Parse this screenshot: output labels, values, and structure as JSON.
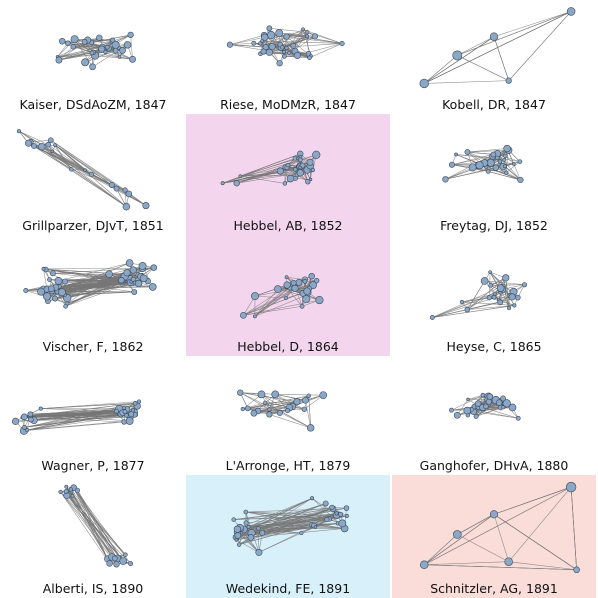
{
  "colors": {
    "node_fill": "#8aa7c7",
    "node_stroke": "#3c4a5a",
    "edge": "#777777",
    "highlight_pink": "#f3d6ee",
    "highlight_blue": "#d8f0fa",
    "highlight_red": "#fadcd8"
  },
  "panels": [
    {
      "label": "Kaiser, DSdAoZM, 1847",
      "highlight": "none",
      "shape": "wide",
      "nodes": 30,
      "seed": 11
    },
    {
      "label": "Riese, MoDMzR, 1847",
      "highlight": "none",
      "shape": "wide",
      "nodes": 34,
      "seed": 12
    },
    {
      "label": "Kobell, DR, 1847",
      "highlight": "none",
      "shape": "sparse",
      "nodes": 5,
      "seed": 13
    },
    {
      "label": "Grillparzer, DJvT, 1851",
      "highlight": "none",
      "shape": "diag",
      "nodes": 18,
      "seed": 14
    },
    {
      "label": "Hebbel, AB, 1852",
      "highlight": "pink",
      "shape": "cluster",
      "nodes": 30,
      "seed": 15
    },
    {
      "label": "Freytag, DJ, 1852",
      "highlight": "none",
      "shape": "dense",
      "nodes": 30,
      "seed": 16
    },
    {
      "label": "Vischer, F, 1862",
      "highlight": "none",
      "shape": "multi",
      "nodes": 50,
      "seed": 17
    },
    {
      "label": "Hebbel, D, 1864",
      "highlight": "pink",
      "shape": "cluster",
      "nodes": 28,
      "seed": 18
    },
    {
      "label": "Heyse, C, 1865",
      "highlight": "none",
      "shape": "cluster",
      "nodes": 24,
      "seed": 19
    },
    {
      "label": "Wagner, P, 1877",
      "highlight": "none",
      "shape": "twoclust",
      "nodes": 34,
      "seed": 20
    },
    {
      "label": "L'Arronge, HT, 1879",
      "highlight": "none",
      "shape": "wide",
      "nodes": 20,
      "seed": 21
    },
    {
      "label": "Ganghofer, DHvA, 1880",
      "highlight": "none",
      "shape": "dense",
      "nodes": 30,
      "seed": 22
    },
    {
      "label": "Alberti, IS, 1890",
      "highlight": "none",
      "shape": "split",
      "nodes": 20,
      "seed": 23
    },
    {
      "label": "Wedekind, FE, 1891",
      "highlight": "blue",
      "shape": "multi",
      "nodes": 36,
      "seed": 24
    },
    {
      "label": "Schnitzler, AG, 1891",
      "highlight": "red",
      "shape": "sparse",
      "nodes": 6,
      "seed": 25
    }
  ]
}
